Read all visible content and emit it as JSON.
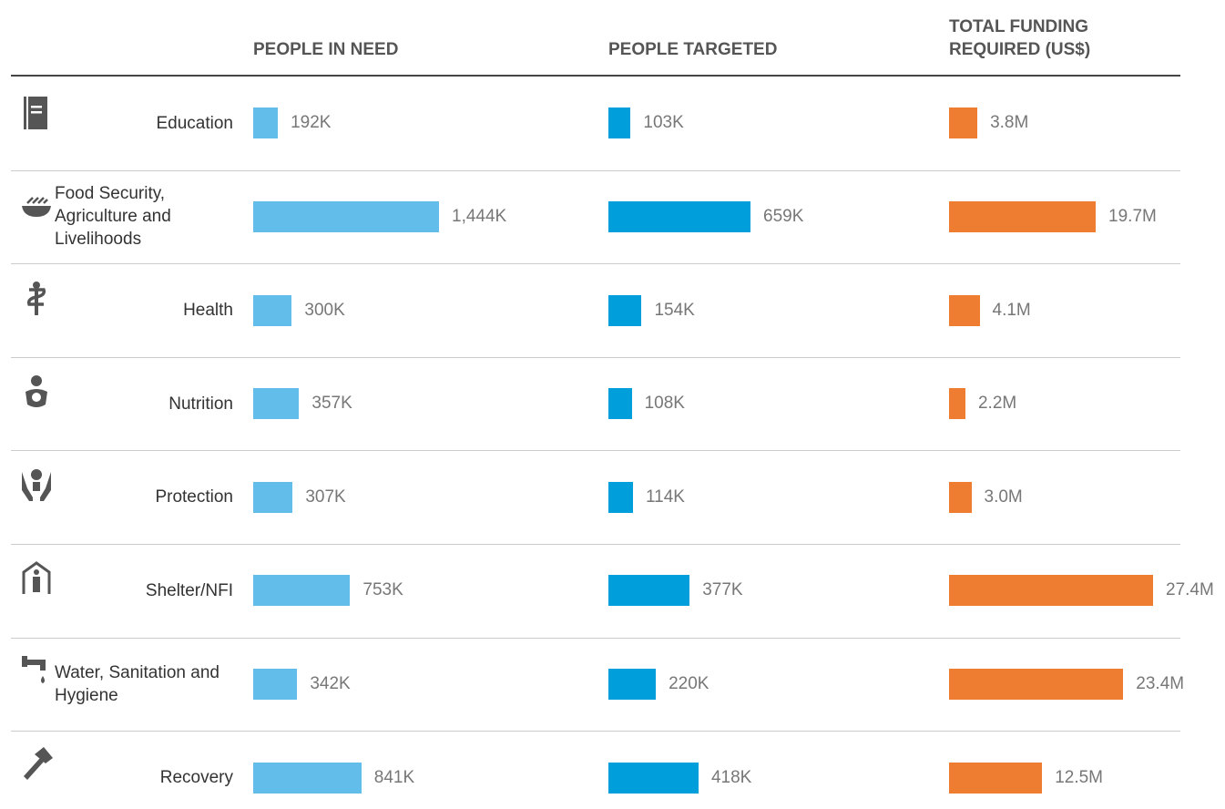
{
  "chart_data": {
    "type": "bar",
    "categories": [
      "Education",
      "Food Security, Agriculture and Livelihoods",
      "Health",
      "Nutrition",
      "Protection",
      "Shelter/NFI",
      "Water, Sanitation and Hygiene",
      "Recovery"
    ],
    "series": [
      {
        "name": "PEOPLE IN NEED",
        "color": "#63bdea",
        "values": [
          192,
          1444,
          300,
          357,
          307,
          753,
          342,
          841
        ],
        "value_labels": [
          "192K",
          "1,444K",
          "300K",
          "357K",
          "307K",
          "753K",
          "342K",
          "841K"
        ]
      },
      {
        "name": "PEOPLE TARGETED",
        "color": "#009edb",
        "values": [
          103,
          659,
          154,
          108,
          114,
          377,
          220,
          418
        ],
        "value_labels": [
          "103K",
          "659K",
          "154K",
          "108K",
          "114K",
          "377K",
          "220K",
          "418K"
        ]
      },
      {
        "name": "TOTAL FUNDING REQUIRED (US$)",
        "color": "#ee7d31",
        "values": [
          3.8,
          19.7,
          4.1,
          2.2,
          3.0,
          27.4,
          23.4,
          12.5
        ],
        "value_labels": [
          "3.8M",
          "19.7M",
          "4.1M",
          "2.2M",
          "3.0M",
          "27.4M",
          "23.4M",
          "12.5M"
        ]
      }
    ]
  }
}
